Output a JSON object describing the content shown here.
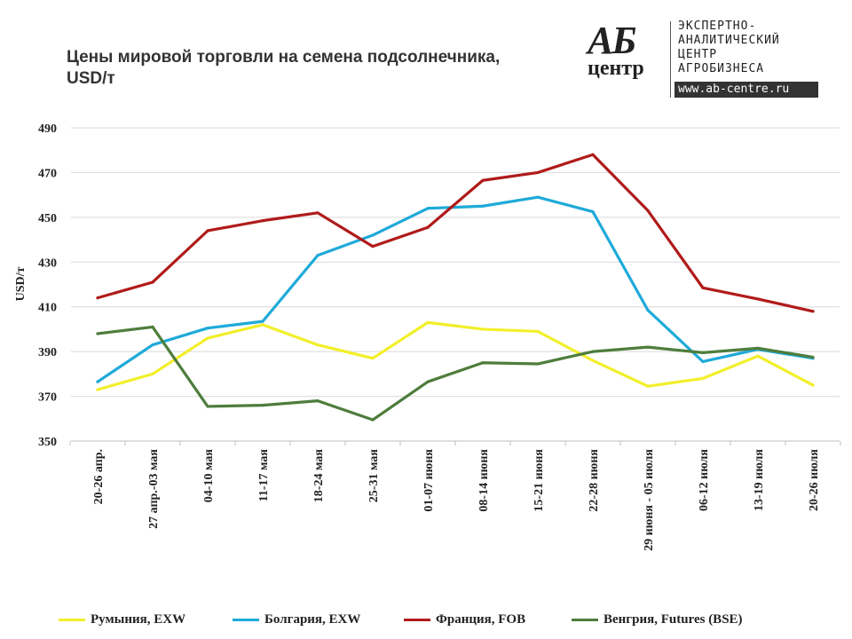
{
  "chart_data": {
    "type": "line",
    "title": "Цены мировой торговли на семена подсолнечника, USD/т",
    "title_lines": [
      "Цены мировой торговли на семена подсолнечника,",
      "USD/т"
    ],
    "ylabel": "USD/т",
    "xlabel": "",
    "ylim": [
      350,
      490
    ],
    "yticks": [
      350,
      370,
      390,
      410,
      430,
      450,
      470,
      490
    ],
    "grid": true,
    "legend": "bottom",
    "categories": [
      "20-26 апр.",
      "27 апр.-03 мая",
      "04-10 мая",
      "11-17 мая",
      "18-24 мая",
      "25-31 мая",
      "01-07 июня",
      "08-14 июня",
      "15-21 июня",
      "22-28 июня",
      "29 июня - 05 июля",
      "06-12 июля",
      "13-19 июля",
      "20-26 июля"
    ],
    "category_lines": [
      [
        "20-26 апр."
      ],
      [
        "27 апр.-03 мая"
      ],
      [
        "04-10 мая"
      ],
      [
        "11-17 мая"
      ],
      [
        "18-24 мая"
      ],
      [
        "25-31 мая"
      ],
      [
        "01-07 июня"
      ],
      [
        "08-14 июня"
      ],
      [
        "15-21 июня"
      ],
      [
        "22-28 июня"
      ],
      [
        "29 июня - 05 июля"
      ],
      [
        "06-12 июля"
      ],
      [
        "13-19 июля"
      ],
      [
        "20-26 июля"
      ]
    ],
    "series": [
      {
        "name": "Румыния, EXW",
        "color": "#f2ef2a",
        "values": [
          373,
          380,
          396,
          402,
          393,
          387,
          403,
          400,
          399,
          386,
          374.5,
          378,
          388,
          375
        ]
      },
      {
        "name": "Болгария, EXW",
        "color": "#1eaad9",
        "values": [
          376.5,
          393,
          400.5,
          403.5,
          433,
          442,
          454,
          455,
          459,
          452.5,
          408.5,
          385.5,
          391,
          387
        ]
      },
      {
        "name": "Франция, FOB",
        "color": "#b01b1b",
        "values": [
          414,
          421,
          444,
          448.5,
          452,
          437,
          445.5,
          466.5,
          470,
          478,
          453,
          418.5,
          413.5,
          408
        ]
      },
      {
        "name": "Венгрия, Futures (BSE)",
        "color": "#4e7d3c",
        "values": [
          398,
          401,
          365.5,
          366,
          368,
          359.5,
          376.5,
          385,
          384.5,
          390,
          392,
          389.5,
          391.5,
          387.5
        ]
      }
    ]
  },
  "logo": {
    "mark_top": "АБ",
    "mark_bottom": "центр",
    "lines": [
      "ЭКСПЕРТНО-",
      "АНАЛИТИЧЕСКИЙ",
      "ЦЕНТР",
      "АГРОБИЗНЕСА"
    ],
    "url": "www.ab-centre.ru"
  }
}
